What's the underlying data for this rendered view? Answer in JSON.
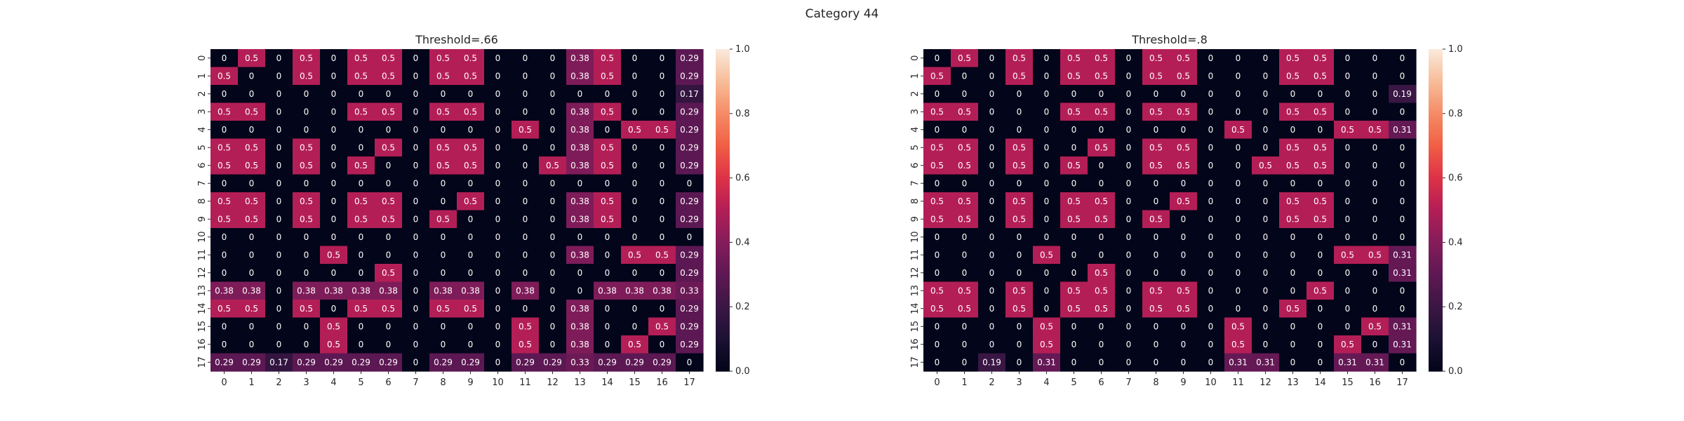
{
  "suptitle": "Category 44",
  "chart_data": [
    {
      "type": "heatmap",
      "title": "Threshold=.66",
      "xlabel": "",
      "ylabel": "",
      "x_categories": [
        "0",
        "1",
        "2",
        "3",
        "4",
        "5",
        "6",
        "7",
        "8",
        "9",
        "10",
        "11",
        "12",
        "13",
        "14",
        "15",
        "16",
        "17"
      ],
      "y_categories": [
        "0",
        "1",
        "2",
        "3",
        "4",
        "5",
        "6",
        "7",
        "8",
        "9",
        "10",
        "11",
        "12",
        "13",
        "14",
        "15",
        "16",
        "17"
      ],
      "vmin": 0,
      "vmax": 1,
      "colorbar_ticks": [
        "0.0",
        "0.2",
        "0.4",
        "0.6",
        "0.8",
        "1.0"
      ],
      "values": [
        [
          0,
          0.5,
          0,
          0.5,
          0,
          0.5,
          0.5,
          0,
          0.5,
          0.5,
          0,
          0,
          0,
          0.38,
          0.5,
          0,
          0,
          0.29
        ],
        [
          0.5,
          0,
          0,
          0.5,
          0,
          0.5,
          0.5,
          0,
          0.5,
          0.5,
          0,
          0,
          0,
          0.38,
          0.5,
          0,
          0,
          0.29
        ],
        [
          0,
          0,
          0,
          0,
          0,
          0,
          0,
          0,
          0,
          0,
          0,
          0,
          0,
          0,
          0,
          0,
          0,
          0.17
        ],
        [
          0.5,
          0.5,
          0,
          0,
          0,
          0.5,
          0.5,
          0,
          0.5,
          0.5,
          0,
          0,
          0,
          0.38,
          0.5,
          0,
          0,
          0.29
        ],
        [
          0,
          0,
          0,
          0,
          0,
          0,
          0,
          0,
          0,
          0,
          0,
          0.5,
          0,
          0.38,
          0,
          0.5,
          0.5,
          0.29
        ],
        [
          0.5,
          0.5,
          0,
          0.5,
          0,
          0,
          0.5,
          0,
          0.5,
          0.5,
          0,
          0,
          0,
          0.38,
          0.5,
          0,
          0,
          0.29
        ],
        [
          0.5,
          0.5,
          0,
          0.5,
          0,
          0.5,
          0,
          0,
          0.5,
          0.5,
          0,
          0,
          0.5,
          0.38,
          0.5,
          0,
          0,
          0.29
        ],
        [
          0,
          0,
          0,
          0,
          0,
          0,
          0,
          0,
          0,
          0,
          0,
          0,
          0,
          0,
          0,
          0,
          0,
          0
        ],
        [
          0.5,
          0.5,
          0,
          0.5,
          0,
          0.5,
          0.5,
          0,
          0,
          0.5,
          0,
          0,
          0,
          0.38,
          0.5,
          0,
          0,
          0.29
        ],
        [
          0.5,
          0.5,
          0,
          0.5,
          0,
          0.5,
          0.5,
          0,
          0.5,
          0,
          0,
          0,
          0,
          0.38,
          0.5,
          0,
          0,
          0.29
        ],
        [
          0,
          0,
          0,
          0,
          0,
          0,
          0,
          0,
          0,
          0,
          0,
          0,
          0,
          0,
          0,
          0,
          0,
          0
        ],
        [
          0,
          0,
          0,
          0,
          0.5,
          0,
          0,
          0,
          0,
          0,
          0,
          0,
          0,
          0.38,
          0,
          0.5,
          0.5,
          0.29
        ],
        [
          0,
          0,
          0,
          0,
          0,
          0,
          0.5,
          0,
          0,
          0,
          0,
          0,
          0,
          0,
          0,
          0,
          0,
          0.29
        ],
        [
          0.38,
          0.38,
          0,
          0.38,
          0.38,
          0.38,
          0.38,
          0,
          0.38,
          0.38,
          0,
          0.38,
          0,
          0,
          0.38,
          0.38,
          0.38,
          0.33
        ],
        [
          0.5,
          0.5,
          0,
          0.5,
          0,
          0.5,
          0.5,
          0,
          0.5,
          0.5,
          0,
          0,
          0,
          0.38,
          0,
          0,
          0,
          0.29
        ],
        [
          0,
          0,
          0,
          0,
          0.5,
          0,
          0,
          0,
          0,
          0,
          0,
          0.5,
          0,
          0.38,
          0,
          0,
          0.5,
          0.29
        ],
        [
          0,
          0,
          0,
          0,
          0.5,
          0,
          0,
          0,
          0,
          0,
          0,
          0.5,
          0,
          0.38,
          0,
          0.5,
          0,
          0.29
        ],
        [
          0.29,
          0.29,
          0.17,
          0.29,
          0.29,
          0.29,
          0.29,
          0,
          0.29,
          0.29,
          0,
          0.29,
          0.29,
          0.33,
          0.29,
          0.29,
          0.29,
          0
        ]
      ]
    },
    {
      "type": "heatmap",
      "title": "Threshold=.8",
      "xlabel": "",
      "ylabel": "",
      "x_categories": [
        "0",
        "1",
        "2",
        "3",
        "4",
        "5",
        "6",
        "7",
        "8",
        "9",
        "10",
        "11",
        "12",
        "13",
        "14",
        "15",
        "16",
        "17"
      ],
      "y_categories": [
        "0",
        "1",
        "2",
        "3",
        "4",
        "5",
        "6",
        "7",
        "8",
        "9",
        "10",
        "11",
        "12",
        "13",
        "14",
        "15",
        "16",
        "17"
      ],
      "vmin": 0,
      "vmax": 1,
      "colorbar_ticks": [
        "0.0",
        "0.2",
        "0.4",
        "0.6",
        "0.8",
        "1.0"
      ],
      "values": [
        [
          0,
          0.5,
          0,
          0.5,
          0,
          0.5,
          0.5,
          0,
          0.5,
          0.5,
          0,
          0,
          0,
          0.5,
          0.5,
          0,
          0,
          0
        ],
        [
          0.5,
          0,
          0,
          0.5,
          0,
          0.5,
          0.5,
          0,
          0.5,
          0.5,
          0,
          0,
          0,
          0.5,
          0.5,
          0,
          0,
          0
        ],
        [
          0,
          0,
          0,
          0,
          0,
          0,
          0,
          0,
          0,
          0,
          0,
          0,
          0,
          0,
          0,
          0,
          0,
          0.19
        ],
        [
          0.5,
          0.5,
          0,
          0,
          0,
          0.5,
          0.5,
          0,
          0.5,
          0.5,
          0,
          0,
          0,
          0.5,
          0.5,
          0,
          0,
          0
        ],
        [
          0,
          0,
          0,
          0,
          0,
          0,
          0,
          0,
          0,
          0,
          0,
          0.5,
          0,
          0,
          0,
          0.5,
          0.5,
          0.31
        ],
        [
          0.5,
          0.5,
          0,
          0.5,
          0,
          0,
          0.5,
          0,
          0.5,
          0.5,
          0,
          0,
          0,
          0.5,
          0.5,
          0,
          0,
          0
        ],
        [
          0.5,
          0.5,
          0,
          0.5,
          0,
          0.5,
          0,
          0,
          0.5,
          0.5,
          0,
          0,
          0.5,
          0.5,
          0.5,
          0,
          0,
          0
        ],
        [
          0,
          0,
          0,
          0,
          0,
          0,
          0,
          0,
          0,
          0,
          0,
          0,
          0,
          0,
          0,
          0,
          0,
          0
        ],
        [
          0.5,
          0.5,
          0,
          0.5,
          0,
          0.5,
          0.5,
          0,
          0,
          0.5,
          0,
          0,
          0,
          0.5,
          0.5,
          0,
          0,
          0
        ],
        [
          0.5,
          0.5,
          0,
          0.5,
          0,
          0.5,
          0.5,
          0,
          0.5,
          0,
          0,
          0,
          0,
          0.5,
          0.5,
          0,
          0,
          0
        ],
        [
          0,
          0,
          0,
          0,
          0,
          0,
          0,
          0,
          0,
          0,
          0,
          0,
          0,
          0,
          0,
          0,
          0,
          0
        ],
        [
          0,
          0,
          0,
          0,
          0.5,
          0,
          0,
          0,
          0,
          0,
          0,
          0,
          0,
          0,
          0,
          0.5,
          0.5,
          0.31
        ],
        [
          0,
          0,
          0,
          0,
          0,
          0,
          0.5,
          0,
          0,
          0,
          0,
          0,
          0,
          0,
          0,
          0,
          0,
          0.31
        ],
        [
          0.5,
          0.5,
          0,
          0.5,
          0,
          0.5,
          0.5,
          0,
          0.5,
          0.5,
          0,
          0,
          0,
          0,
          0.5,
          0,
          0,
          0
        ],
        [
          0.5,
          0.5,
          0,
          0.5,
          0,
          0.5,
          0.5,
          0,
          0.5,
          0.5,
          0,
          0,
          0,
          0.5,
          0,
          0,
          0,
          0
        ],
        [
          0,
          0,
          0,
          0,
          0.5,
          0,
          0,
          0,
          0,
          0,
          0,
          0.5,
          0,
          0,
          0,
          0,
          0.5,
          0.31
        ],
        [
          0,
          0,
          0,
          0,
          0.5,
          0,
          0,
          0,
          0,
          0,
          0,
          0.5,
          0,
          0,
          0,
          0.5,
          0,
          0.31
        ],
        [
          0,
          0,
          0.19,
          0,
          0.31,
          0,
          0,
          0,
          0,
          0,
          0,
          0.31,
          0.31,
          0,
          0,
          0.31,
          0.31,
          0
        ]
      ]
    }
  ]
}
